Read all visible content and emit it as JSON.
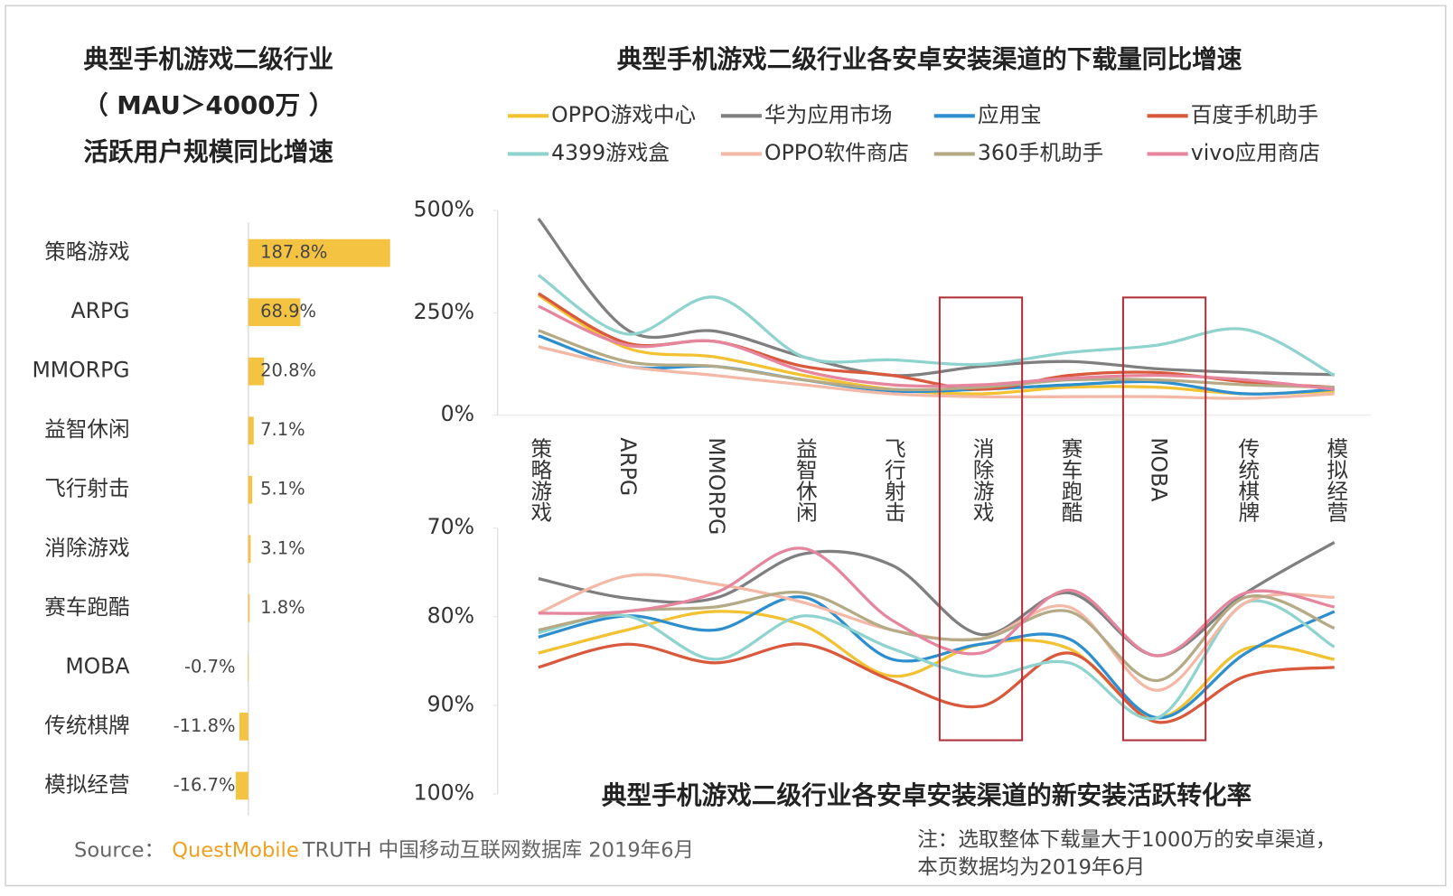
{
  "chart_data": [
    {
      "type": "hbar",
      "title": [
        "典型手机游戏二级行业",
        "（ MAU＞4000万 ）",
        "活跃用户规模同比增速"
      ],
      "categories": [
        "策略游戏",
        "ARPG",
        "MMORPG",
        "益智休闲",
        "飞行射击",
        "消除游戏",
        "赛车跑酷",
        "MOBA",
        "传统棋牌",
        "模拟经营"
      ],
      "values": [
        187.8,
        68.9,
        20.8,
        7.1,
        5.1,
        3.1,
        1.8,
        -0.7,
        -11.8,
        -16.7
      ],
      "value_labels": [
        "187.8%",
        "68.9%",
        "20.8%",
        "7.1%",
        "5.1%",
        "3.1%",
        "1.8%",
        "-0.7%",
        "-11.8%",
        "-16.7%"
      ],
      "color": "#f5c342"
    },
    {
      "type": "line",
      "title": "典型手机游戏二级行业各安卓安装渠道的下载量同比增速",
      "categories": [
        "策略游戏",
        "ARPG",
        "MMORPG",
        "益智休闲",
        "飞行射击",
        "消除游戏",
        "赛车跑酷",
        "MOBA",
        "传统棋牌",
        "模拟经营"
      ],
      "ylim": [
        0,
        500
      ],
      "yticks": [
        {
          "value": 0,
          "label": "0%"
        },
        {
          "value": 250,
          "label": "250%"
        },
        {
          "value": 500,
          "label": "500%"
        }
      ],
      "series": [
        {
          "name": "OPPO游戏中心",
          "color": "#f2c233",
          "values": [
            293,
            164,
            142,
            97,
            63,
            52,
            68,
            68,
            52,
            59
          ]
        },
        {
          "name": "华为应用市场",
          "color": "#7f7f7f",
          "values": [
            480,
            209,
            205,
            142,
            97,
            119,
            131,
            113,
            104,
            99
          ]
        },
        {
          "name": "应用宝",
          "color": "#2e8fcf",
          "values": [
            194,
            119,
            119,
            86,
            59,
            63,
            74,
            81,
            52,
            63
          ]
        },
        {
          "name": "百度手机助手",
          "color": "#d9593d",
          "values": [
            297,
            176,
            180,
            119,
            97,
            63,
            97,
            104,
            81,
            68
          ]
        },
        {
          "name": "4399游戏盒",
          "color": "#8fd3cf",
          "values": [
            342,
            198,
            288,
            142,
            135,
            124,
            153,
            171,
            209,
            97
          ]
        },
        {
          "name": "OPPO软件商店",
          "color": "#f4b9a6",
          "values": [
            167,
            119,
            97,
            74,
            52,
            45,
            45,
            45,
            41,
            52
          ]
        },
        {
          "name": "360手机助手",
          "color": "#b5aa86",
          "values": [
            207,
            131,
            119,
            86,
            63,
            68,
            86,
            86,
            74,
            68
          ]
        },
        {
          "name": "vivo应用商店",
          "color": "#e5869e",
          "values": [
            266,
            171,
            180,
            108,
            74,
            74,
            90,
            97,
            86,
            63
          ]
        }
      ]
    },
    {
      "type": "line",
      "title": "典型手机游戏二级行业各安卓安装渠道的新安装活跃转化率",
      "ylim": [
        100,
        70
      ],
      "yticks": [
        {
          "value": 70,
          "label": "70%"
        },
        {
          "value": 80,
          "label": "80%"
        },
        {
          "value": 90,
          "label": "90%"
        },
        {
          "value": 100,
          "label": "100%"
        }
      ],
      "series": [
        {
          "color": "#f2c233",
          "values": [
            84.1,
            81.5,
            79.4,
            81.0,
            86.7,
            83.1,
            83.6,
            91.4,
            83.6,
            84.8
          ]
        },
        {
          "color": "#7f7f7f",
          "values": [
            75.7,
            77.9,
            77.9,
            72.9,
            74.2,
            82.0,
            77.3,
            84.4,
            77.3,
            71.6
          ]
        },
        {
          "color": "#2e8fcf",
          "values": [
            82.3,
            79.9,
            81.5,
            77.8,
            84.8,
            83.1,
            82.5,
            91.4,
            84.1,
            79.4
          ]
        },
        {
          "color": "#d9593d",
          "values": [
            85.7,
            83.1,
            85.2,
            83.1,
            87.2,
            90.1,
            84.1,
            91.9,
            86.7,
            85.7
          ]
        },
        {
          "color": "#8fd3cf",
          "values": [
            81.8,
            79.9,
            84.8,
            79.9,
            83.6,
            86.7,
            85.2,
            91.4,
            78.4,
            83.4
          ]
        },
        {
          "color": "#f4b9a6",
          "values": [
            79.6,
            75.4,
            76.3,
            78.4,
            81.5,
            82.5,
            78.9,
            88.3,
            78.4,
            77.8
          ]
        },
        {
          "color": "#b5aa86",
          "values": [
            81.5,
            79.4,
            78.9,
            77.3,
            81.5,
            82.5,
            79.4,
            87.2,
            77.8,
            81.3
          ]
        },
        {
          "color": "#e5869e",
          "values": [
            79.6,
            79.4,
            77.3,
            72.3,
            80.4,
            84.1,
            77.0,
            84.4,
            77.3,
            78.9
          ]
        }
      ]
    }
  ],
  "source": {
    "label": "Source：",
    "brand": "QuestMobile",
    "text": "TRUTH 中国移动互联网数据库 2019年6月"
  },
  "note": [
    "注：选取整体下载量大于1000万的安卓渠道，",
    "本页数据均为2019年6月"
  ]
}
